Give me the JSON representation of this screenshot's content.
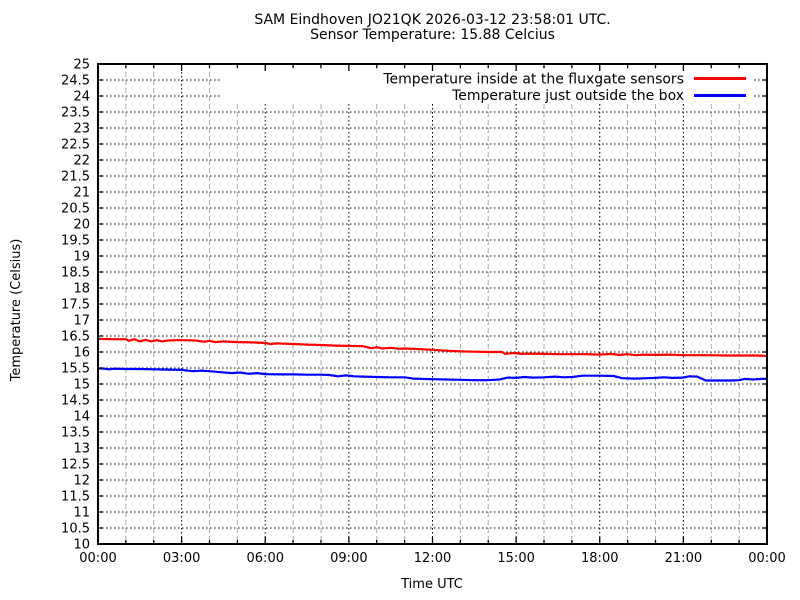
{
  "header": {
    "title": "SAM Eindhoven JO21QK 2026-03-12 23:58:01 UTC.",
    "subtitle": "Sensor Temperature: 15.88 Celcius"
  },
  "colors": {
    "background": "#ffffff",
    "frame": "#000000",
    "grid_major": "#000000",
    "grid_minor": "#aaaaaa",
    "text": "#000000",
    "inside_line": "#ff0000",
    "outside_line": "#0000ff"
  },
  "chart_data": {
    "type": "line",
    "title": "SAM Eindhoven JO21QK 2026-03-12 23:58:01 UTC.",
    "subtitle": "Sensor Temperature: 15.88 Celcius",
    "xlabel": "Time UTC",
    "ylabel": "Temperature (Celsius)",
    "xlim": [
      0,
      24
    ],
    "ylim": [
      10,
      25
    ],
    "y_tick_step": 0.5,
    "x_major_tick_hours": 3,
    "x_minor_tick_hours": 1,
    "grid": "on",
    "legend_position": "inside-top-right",
    "y_ticks": [
      "25",
      "24.5",
      "24",
      "23.5",
      "23",
      "22.5",
      "22",
      "21.5",
      "21",
      "20.5",
      "20",
      "19.5",
      "19",
      "18.5",
      "18",
      "17.5",
      "17",
      "16.5",
      "16",
      "15.5",
      "15",
      "14.5",
      "14",
      "13.5",
      "13",
      "12.5",
      "12",
      "11.5",
      "11",
      "10.5",
      "10"
    ],
    "x_ticks": [
      {
        "hour": 0,
        "label": "00:00"
      },
      {
        "hour": 3,
        "label": "03:00"
      },
      {
        "hour": 6,
        "label": "06:00"
      },
      {
        "hour": 9,
        "label": "09:00"
      },
      {
        "hour": 12,
        "label": "12:00"
      },
      {
        "hour": 15,
        "label": "15:00"
      },
      {
        "hour": 18,
        "label": "18:00"
      },
      {
        "hour": 21,
        "label": "21:00"
      },
      {
        "hour": 24,
        "label": "00:00"
      }
    ],
    "series": [
      {
        "name": "Temperature inside at the fluxgate sensors",
        "color": "#ff0000",
        "points": [
          [
            0,
            16.41
          ],
          [
            0.5,
            16.4
          ],
          [
            1.0,
            16.4
          ],
          [
            1.1,
            16.35
          ],
          [
            1.3,
            16.4
          ],
          [
            1.5,
            16.33
          ],
          [
            1.7,
            16.38
          ],
          [
            1.9,
            16.33
          ],
          [
            2.1,
            16.37
          ],
          [
            2.3,
            16.33
          ],
          [
            2.5,
            16.36
          ],
          [
            2.8,
            16.37
          ],
          [
            3.0,
            16.37
          ],
          [
            3.5,
            16.36
          ],
          [
            3.8,
            16.32
          ],
          [
            4.0,
            16.35
          ],
          [
            4.2,
            16.31
          ],
          [
            4.5,
            16.33
          ],
          [
            5.0,
            16.31
          ],
          [
            5.5,
            16.3
          ],
          [
            6.0,
            16.28
          ],
          [
            6.2,
            16.25
          ],
          [
            6.4,
            16.27
          ],
          [
            7.0,
            16.25
          ],
          [
            7.5,
            16.23
          ],
          [
            8.0,
            16.22
          ],
          [
            8.5,
            16.2
          ],
          [
            9.0,
            16.19
          ],
          [
            9.5,
            16.18
          ],
          [
            9.8,
            16.12
          ],
          [
            10.0,
            16.15
          ],
          [
            10.2,
            16.11
          ],
          [
            10.5,
            16.13
          ],
          [
            10.8,
            16.1
          ],
          [
            11.0,
            16.11
          ],
          [
            11.5,
            16.09
          ],
          [
            12.0,
            16.07
          ],
          [
            12.5,
            16.04
          ],
          [
            13.0,
            16.02
          ],
          [
            13.5,
            16.01
          ],
          [
            14.0,
            16.0
          ],
          [
            14.5,
            16.0
          ],
          [
            14.6,
            15.94
          ],
          [
            14.9,
            15.97
          ],
          [
            15.2,
            15.94
          ],
          [
            15.5,
            15.95
          ],
          [
            16.0,
            15.94
          ],
          [
            16.5,
            15.93
          ],
          [
            17.0,
            15.93
          ],
          [
            17.5,
            15.93
          ],
          [
            18.0,
            15.92
          ],
          [
            18.4,
            15.94
          ],
          [
            18.7,
            15.91
          ],
          [
            19.0,
            15.93
          ],
          [
            19.3,
            15.9
          ],
          [
            19.6,
            15.92
          ],
          [
            20.0,
            15.91
          ],
          [
            20.5,
            15.92
          ],
          [
            21.0,
            15.9
          ],
          [
            21.5,
            15.9
          ],
          [
            22.0,
            15.9
          ],
          [
            22.5,
            15.89
          ],
          [
            23.0,
            15.89
          ],
          [
            23.5,
            15.89
          ],
          [
            24,
            15.88
          ]
        ]
      },
      {
        "name": "Temperature just outside the box",
        "color": "#0000ff",
        "points": [
          [
            0,
            15.49
          ],
          [
            0.2,
            15.48
          ],
          [
            0.4,
            15.46
          ],
          [
            0.6,
            15.48
          ],
          [
            1.0,
            15.47
          ],
          [
            1.5,
            15.47
          ],
          [
            2.0,
            15.46
          ],
          [
            2.5,
            15.45
          ],
          [
            3.0,
            15.44
          ],
          [
            3.4,
            15.4
          ],
          [
            3.7,
            15.42
          ],
          [
            4.0,
            15.4
          ],
          [
            4.4,
            15.37
          ],
          [
            4.8,
            15.34
          ],
          [
            5.1,
            15.36
          ],
          [
            5.4,
            15.32
          ],
          [
            5.7,
            15.34
          ],
          [
            6.0,
            15.31
          ],
          [
            6.5,
            15.3
          ],
          [
            7.0,
            15.3
          ],
          [
            7.5,
            15.29
          ],
          [
            8.0,
            15.29
          ],
          [
            8.3,
            15.28
          ],
          [
            8.6,
            15.24
          ],
          [
            8.9,
            15.27
          ],
          [
            9.2,
            15.24
          ],
          [
            9.5,
            15.23
          ],
          [
            10,
            15.22
          ],
          [
            10.5,
            15.21
          ],
          [
            11,
            15.21
          ],
          [
            11.3,
            15.17
          ],
          [
            12,
            15.15
          ],
          [
            12.5,
            15.14
          ],
          [
            13,
            15.13
          ],
          [
            13.5,
            15.12
          ],
          [
            14,
            15.12
          ],
          [
            14.4,
            15.14
          ],
          [
            14.7,
            15.2
          ],
          [
            15,
            15.19
          ],
          [
            15.3,
            15.22
          ],
          [
            15.6,
            15.2
          ],
          [
            16,
            15.21
          ],
          [
            16.4,
            15.23
          ],
          [
            16.7,
            15.21
          ],
          [
            17,
            15.22
          ],
          [
            17.4,
            15.26
          ],
          [
            18,
            15.26
          ],
          [
            18.5,
            15.25
          ],
          [
            18.8,
            15.18
          ],
          [
            19.3,
            15.17
          ],
          [
            19.7,
            15.18
          ],
          [
            20,
            15.19
          ],
          [
            20.3,
            15.21
          ],
          [
            20.6,
            15.19
          ],
          [
            21,
            15.2
          ],
          [
            21.2,
            15.24
          ],
          [
            21.5,
            15.23
          ],
          [
            21.8,
            15.11
          ],
          [
            22.3,
            15.11
          ],
          [
            22.7,
            15.11
          ],
          [
            23,
            15.12
          ],
          [
            23.2,
            15.16
          ],
          [
            23.5,
            15.14
          ],
          [
            23.8,
            15.16
          ],
          [
            24,
            15.16
          ]
        ]
      }
    ]
  }
}
